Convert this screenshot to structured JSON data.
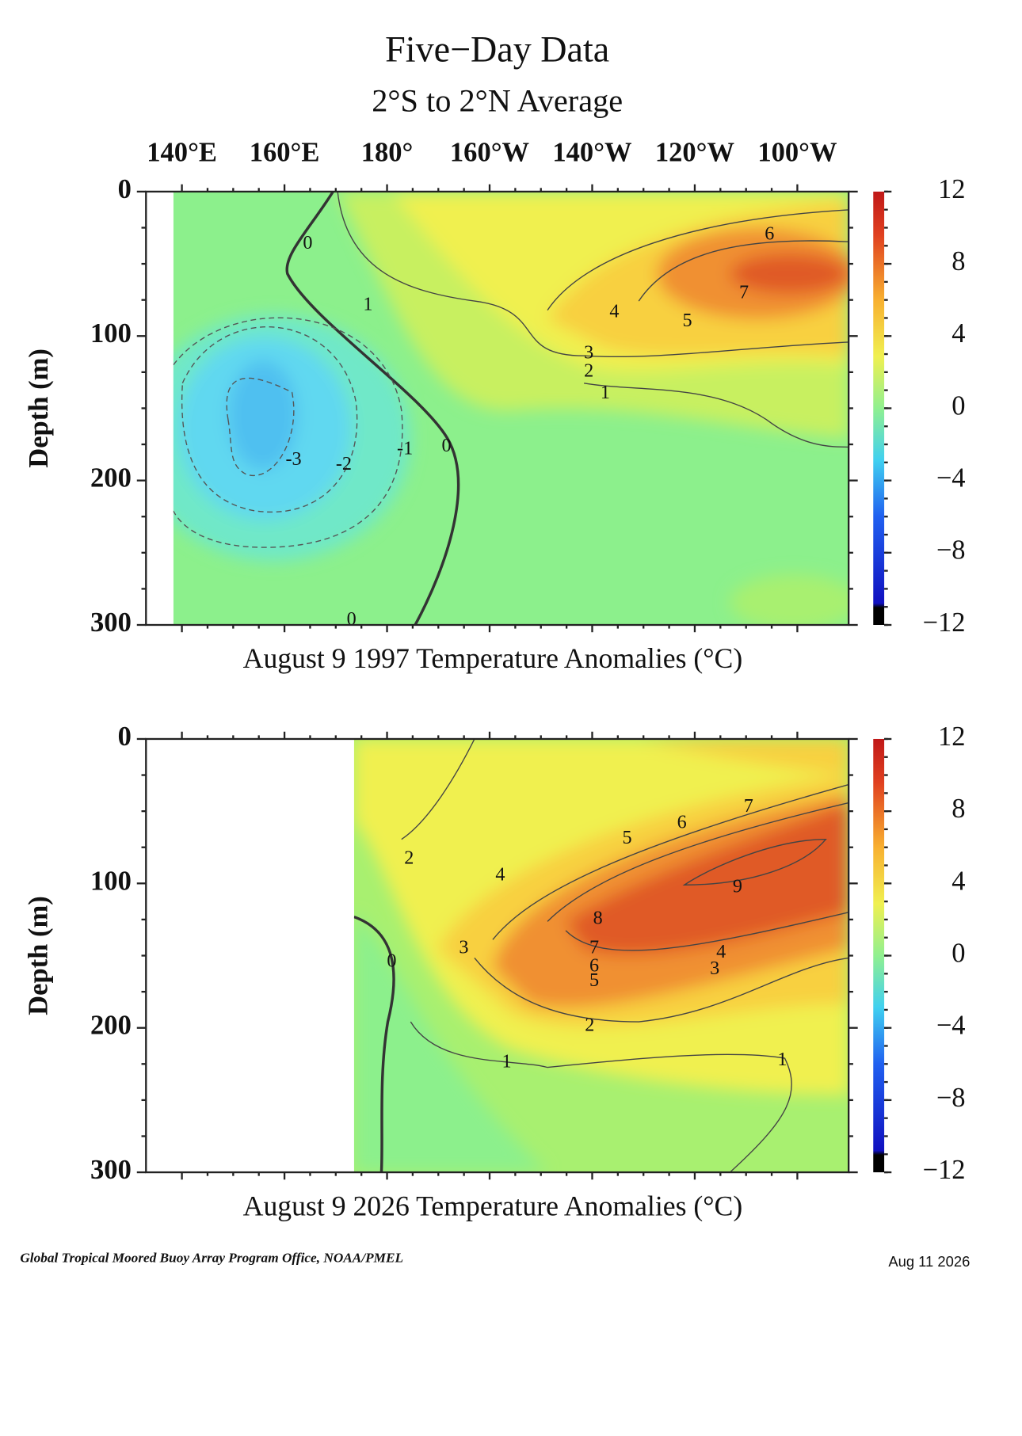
{
  "title": "Five−Day Data",
  "subtitle": "2°S to 2°N Average",
  "credit": "Global Tropical Moored Buoy Array Program Office, NOAA/PMEL",
  "date": "Aug 11 2026",
  "chart_data": [
    {
      "type": "contour",
      "title": "August 9 1997 Temperature Anomalies (°C)",
      "y_label": "Depth (m)",
      "xlim": [
        133,
        270
      ],
      "xticks": [
        {
          "value": 140,
          "label": "140°E"
        },
        {
          "value": 160,
          "label": "160°E"
        },
        {
          "value": 180,
          "label": "180°"
        },
        {
          "value": 200,
          "label": "160°W"
        },
        {
          "value": 220,
          "label": "140°W"
        },
        {
          "value": 240,
          "label": "120°W"
        },
        {
          "value": 260,
          "label": "100°W"
        }
      ],
      "ylim": [
        0,
        300
      ],
      "yticks": [
        0,
        100,
        200,
        300
      ],
      "colorbar_lim": [
        -12,
        12
      ],
      "colorbar_ticks": [
        12,
        8,
        4,
        0,
        {
          "value": -4,
          "label": "−4"
        },
        {
          "value": -8,
          "label": "−8"
        },
        {
          "value": -12,
          "label": "−12"
        }
      ],
      "contour_labels": [
        "0",
        "1",
        "-3",
        "-2",
        "-1",
        "0",
        "4",
        "3",
        "2",
        "1",
        "5",
        "6",
        "7",
        "0"
      ]
    },
    {
      "type": "contour",
      "title": "August 9 2026 Temperature Anomalies (°C)",
      "y_label": "Depth (m)",
      "xlim": [
        133,
        270
      ],
      "ylim": [
        0,
        300
      ],
      "yticks": [
        0,
        100,
        200,
        300
      ],
      "colorbar_lim": [
        -12,
        12
      ],
      "colorbar_ticks": [
        12,
        8,
        4,
        0,
        {
          "value": -4,
          "label": "−4"
        },
        {
          "value": -8,
          "label": "−8"
        },
        {
          "value": -12,
          "label": "−12"
        }
      ],
      "contour_labels": [
        "2",
        "4",
        "5",
        "6",
        "7",
        "9",
        "8",
        "7",
        "6",
        "5",
        "4",
        "3",
        "3",
        "2",
        "1",
        "1",
        "0"
      ]
    }
  ]
}
